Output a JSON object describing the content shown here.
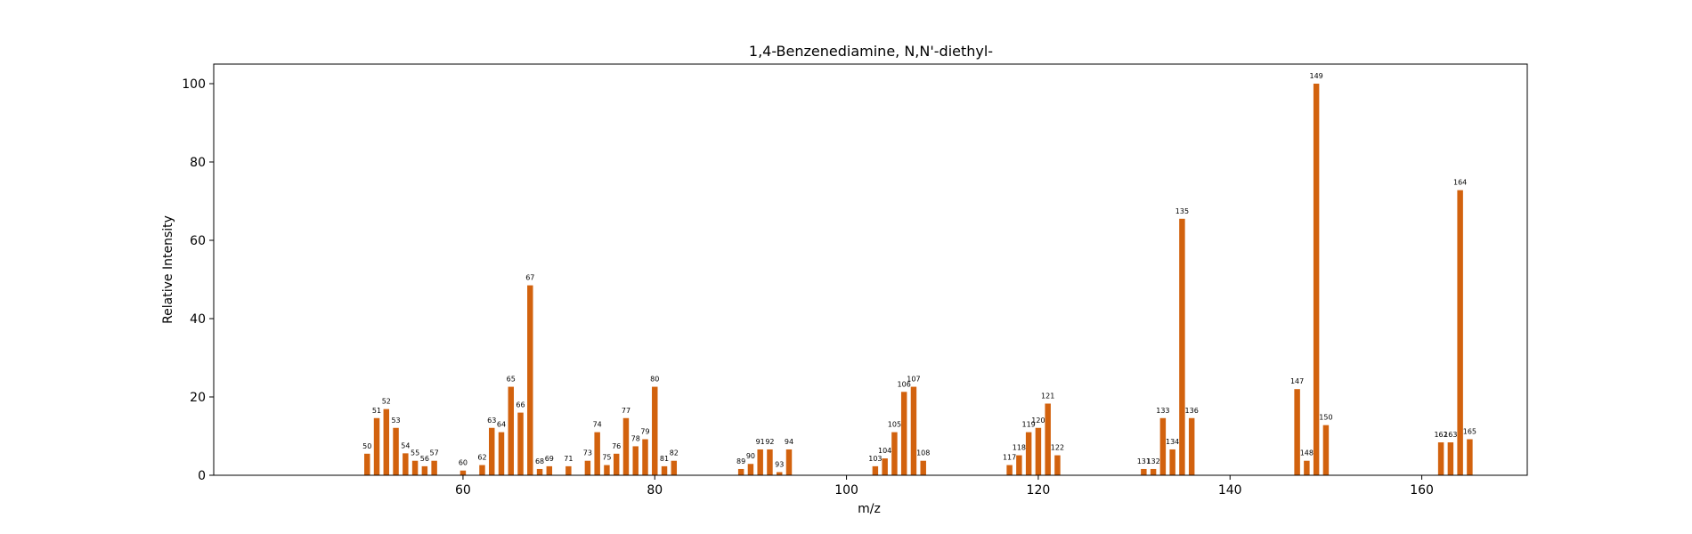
{
  "chart_data": {
    "type": "bar",
    "title": "1,4-Benzenediamine, N,N'-diethyl-",
    "xlabel": "m/z",
    "ylabel": "Relative Intensity",
    "xlim": [
      34,
      171
    ],
    "ylim": [
      0,
      105
    ],
    "xticks": [
      60,
      80,
      100,
      120,
      140,
      160
    ],
    "yticks": [
      0,
      20,
      40,
      60,
      80,
      100
    ],
    "bar_color": "#d2620e",
    "grid": false,
    "bars": [
      {
        "x": 50,
        "y": 5.5
      },
      {
        "x": 51,
        "y": 14.6
      },
      {
        "x": 52,
        "y": 16.9
      },
      {
        "x": 53,
        "y": 12.1
      },
      {
        "x": 54,
        "y": 5.6
      },
      {
        "x": 55,
        "y": 3.7
      },
      {
        "x": 56,
        "y": 2.3
      },
      {
        "x": 57,
        "y": 3.7
      },
      {
        "x": 60,
        "y": 1.2
      },
      {
        "x": 62,
        "y": 2.6
      },
      {
        "x": 63,
        "y": 12.1
      },
      {
        "x": 64,
        "y": 11.0
      },
      {
        "x": 65,
        "y": 22.6
      },
      {
        "x": 66,
        "y": 16.0
      },
      {
        "x": 67,
        "y": 48.5
      },
      {
        "x": 68,
        "y": 1.6
      },
      {
        "x": 69,
        "y": 2.3
      },
      {
        "x": 71,
        "y": 2.3
      },
      {
        "x": 73,
        "y": 3.7
      },
      {
        "x": 74,
        "y": 11.0
      },
      {
        "x": 75,
        "y": 2.6
      },
      {
        "x": 76,
        "y": 5.5
      },
      {
        "x": 77,
        "y": 14.6
      },
      {
        "x": 78,
        "y": 7.4
      },
      {
        "x": 79,
        "y": 9.2
      },
      {
        "x": 80,
        "y": 22.6
      },
      {
        "x": 81,
        "y": 2.3
      },
      {
        "x": 82,
        "y": 3.7
      },
      {
        "x": 89,
        "y": 1.6
      },
      {
        "x": 90,
        "y": 2.9
      },
      {
        "x": 91,
        "y": 6.6
      },
      {
        "x": 92,
        "y": 6.6
      },
      {
        "x": 93,
        "y": 0.8
      },
      {
        "x": 94,
        "y": 6.6
      },
      {
        "x": 103,
        "y": 2.3
      },
      {
        "x": 104,
        "y": 4.3
      },
      {
        "x": 105,
        "y": 11.0
      },
      {
        "x": 106,
        "y": 21.3
      },
      {
        "x": 107,
        "y": 22.6
      },
      {
        "x": 108,
        "y": 3.7
      },
      {
        "x": 117,
        "y": 2.6
      },
      {
        "x": 118,
        "y": 5.1
      },
      {
        "x": 119,
        "y": 11.0
      },
      {
        "x": 120,
        "y": 12.1
      },
      {
        "x": 121,
        "y": 18.3
      },
      {
        "x": 122,
        "y": 5.1
      },
      {
        "x": 131,
        "y": 1.6
      },
      {
        "x": 132,
        "y": 1.6
      },
      {
        "x": 133,
        "y": 14.6
      },
      {
        "x": 134,
        "y": 6.6
      },
      {
        "x": 135,
        "y": 65.5
      },
      {
        "x": 136,
        "y": 14.6
      },
      {
        "x": 147,
        "y": 22.0
      },
      {
        "x": 148,
        "y": 3.7
      },
      {
        "x": 149,
        "y": 100.0
      },
      {
        "x": 150,
        "y": 12.8
      },
      {
        "x": 162,
        "y": 8.4
      },
      {
        "x": 163,
        "y": 8.4
      },
      {
        "x": 164,
        "y": 72.8
      },
      {
        "x": 165,
        "y": 9.2
      }
    ]
  }
}
